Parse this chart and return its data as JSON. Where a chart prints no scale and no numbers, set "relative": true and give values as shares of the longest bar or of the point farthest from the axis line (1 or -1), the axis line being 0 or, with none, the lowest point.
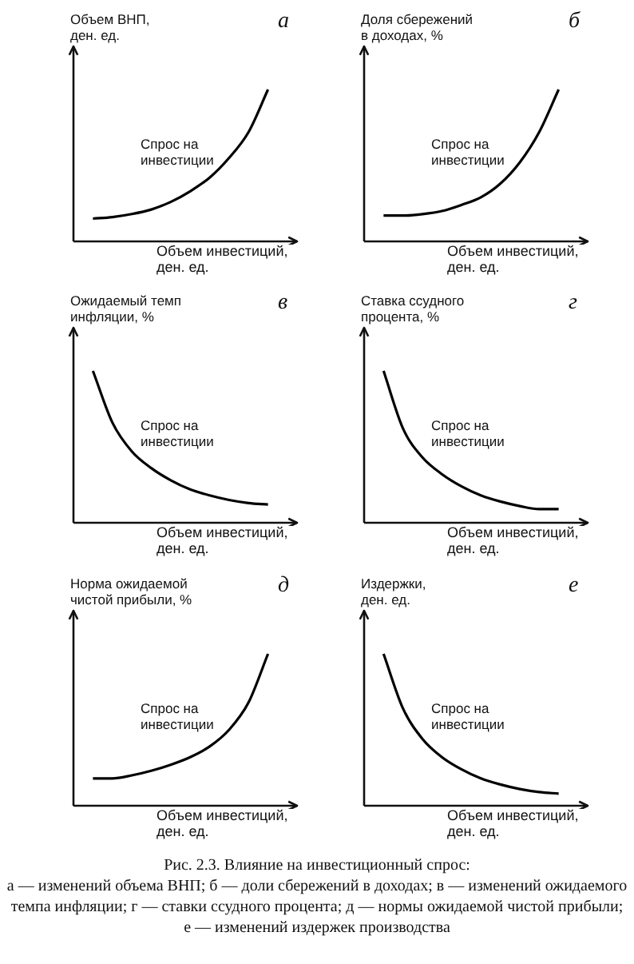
{
  "chart_data": [
    {
      "type": "line",
      "title": "а",
      "ylabel": "Объем ВНП,\nден. ед.",
      "xlabel": "Объем инвестиций,\nден. ед.",
      "annotations": [
        "Спрос на\nинвестиции"
      ],
      "relative": true,
      "marker": "none",
      "categories": [
        null,
        null,
        null,
        null,
        null,
        null,
        null,
        null,
        null,
        null,
        null,
        null
      ],
      "series": [
        {
          "color": "#000000",
          "values": [
            null,
            0.15,
            0.16,
            0.18,
            0.21,
            0.26,
            0.33,
            0.42,
            0.55,
            0.72,
            1.0,
            null
          ]
        }
      ]
    },
    {
      "type": "line",
      "title": "б",
      "ylabel": "Доля сбережений\nв доходах, %",
      "xlabel": "Объем инвестиций,\nден. ед.",
      "annotations": [
        "Спрос на\nинвестиции"
      ],
      "relative": true,
      "marker": "none",
      "categories": [
        null,
        null,
        null,
        null,
        null,
        null,
        null,
        null,
        null,
        null,
        null,
        null
      ],
      "series": [
        {
          "color": "#000000",
          "values": [
            null,
            0.17,
            0.17,
            0.18,
            0.2,
            0.24,
            0.29,
            0.38,
            0.52,
            0.72,
            1.0,
            null
          ]
        }
      ]
    },
    {
      "type": "line",
      "title": "в",
      "ylabel": "Ожидаемый темп\nинфляции, %",
      "xlabel": "Объем инвестиций,\nден. ед.",
      "annotations": [
        "Спрос на\nинвестиции"
      ],
      "relative": true,
      "marker": "none",
      "categories": [
        null,
        null,
        null,
        null,
        null,
        null,
        null,
        null,
        null,
        null,
        null,
        null
      ],
      "series": [
        {
          "color": "#000000",
          "values": [
            null,
            1.0,
            0.66,
            0.47,
            0.36,
            0.28,
            0.22,
            0.18,
            0.15,
            0.13,
            0.12,
            null
          ]
        }
      ]
    },
    {
      "type": "line",
      "title": "г",
      "ylabel": "Ставка ссудного\nпроцента, %",
      "xlabel": "Объем инвестиций,\nден. ед.",
      "annotations": [
        "Спрос на\nинвестиции"
      ],
      "relative": true,
      "marker": "none",
      "categories": [
        null,
        null,
        null,
        null,
        null,
        null,
        null,
        null,
        null,
        null,
        null,
        null
      ],
      "series": [
        {
          "color": "#000000",
          "values": [
            null,
            1.0,
            0.62,
            0.43,
            0.32,
            0.24,
            0.18,
            0.14,
            0.11,
            0.09,
            0.09,
            null
          ]
        }
      ]
    },
    {
      "type": "line",
      "title": "д",
      "ylabel": "Норма ожидаемой\nчистой прибыли, %",
      "xlabel": "Объем инвестиций,\nден. ед.",
      "annotations": [
        "Спрос на\nинвестиции"
      ],
      "relative": true,
      "marker": "none",
      "categories": [
        null,
        null,
        null,
        null,
        null,
        null,
        null,
        null,
        null,
        null,
        null,
        null
      ],
      "series": [
        {
          "color": "#000000",
          "values": [
            null,
            0.18,
            0.18,
            0.2,
            0.23,
            0.27,
            0.32,
            0.39,
            0.5,
            0.68,
            1.0,
            null
          ]
        }
      ]
    },
    {
      "type": "line",
      "title": "е",
      "ylabel": "Издержки,\nден. ед.",
      "xlabel": "Объем инвестиций,\nден. ед.",
      "annotations": [
        "Спрос на\nинвестиции",
        "Рис. 2.3. Влияние на инвестиционный спрос:",
        "а — изменений объема ВНП; б — доли сбережений в доходах; в — изменений ожидаемого темпа инфляции; г — ставки ссудного процента; д — нормы ожидаемой чистой прибыли; е — изменений издержек производства"
      ],
      "relative": true,
      "marker": "none",
      "categories": [
        null,
        null,
        null,
        null,
        null,
        null,
        null,
        null,
        null,
        null,
        null,
        null
      ],
      "series": [
        {
          "color": "#000000",
          "values": [
            null,
            1.0,
            0.64,
            0.44,
            0.32,
            0.24,
            0.18,
            0.14,
            0.11,
            0.09,
            0.08,
            null
          ]
        }
      ]
    }
  ]
}
